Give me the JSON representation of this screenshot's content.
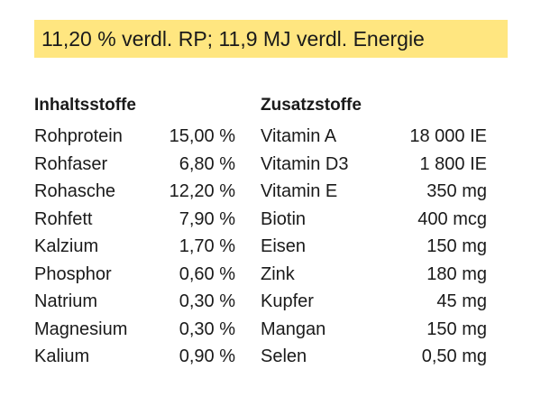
{
  "banner": {
    "text": "11,20 % verdl. RP; 11,9 MJ verdl. Energie",
    "color": "#ffe680"
  },
  "headers": {
    "left": "Inhaltsstoffe",
    "right": "Zusatzstoffe"
  },
  "ingredients": [
    {
      "name": "Rohprotein",
      "value": "15,00 %"
    },
    {
      "name": "Rohfaser",
      "value": "6,80 %"
    },
    {
      "name": "Rohasche",
      "value": "12,20 %"
    },
    {
      "name": "Rohfett",
      "value": "7,90 %"
    },
    {
      "name": "Kalzium",
      "value": "1,70 %"
    },
    {
      "name": "Phosphor",
      "value": "0,60 %"
    },
    {
      "name": "Natrium",
      "value": "0,30 %"
    },
    {
      "name": "Magnesium",
      "value": "0,30 %"
    },
    {
      "name": "Kalium",
      "value": "0,90 %"
    }
  ],
  "additives": [
    {
      "name": "Vitamin A",
      "amount": "18 000 IE"
    },
    {
      "name": "Vitamin D3",
      "amount": "1 800 IE"
    },
    {
      "name": "Vitamin E",
      "amount": "350 mg"
    },
    {
      "name": "Biotin",
      "amount": "400 mcg"
    },
    {
      "name": "Eisen",
      "amount": "150 mg"
    },
    {
      "name": "Zink",
      "amount": "180 mg"
    },
    {
      "name": "Kupfer",
      "amount": "45 mg"
    },
    {
      "name": "Mangan",
      "amount": "150 mg"
    },
    {
      "name": "Selen",
      "amount": "0,50 mg"
    }
  ]
}
